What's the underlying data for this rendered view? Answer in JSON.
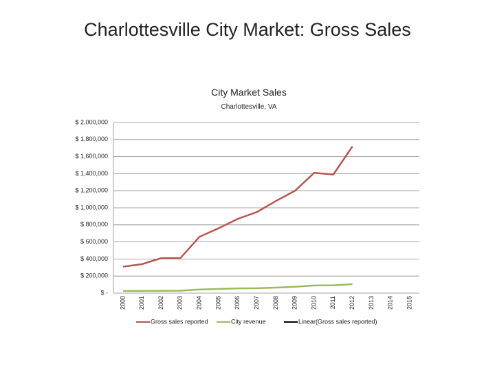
{
  "slide_title": "Charlottesville City Market:  Gross Sales",
  "chart_data": {
    "type": "line",
    "title": "City Market Sales",
    "subtitle": "Charlottesville, VA",
    "categories": [
      "2000",
      "2001",
      "2002",
      "2003",
      "2004",
      "2005",
      "2006",
      "2007",
      "2008",
      "2009",
      "2010",
      "2011",
      "2012",
      "2013",
      "2014",
      "2015"
    ],
    "series": [
      {
        "name": "Gross sales reported",
        "color": "#b85450",
        "values": [
          310000,
          340000,
          410000,
          410000,
          660000,
          760000,
          870000,
          950000,
          1080000,
          1200000,
          1410000,
          1390000,
          1720000,
          null,
          null,
          null
        ]
      },
      {
        "name": "City revenue",
        "color": "#9bbb59",
        "values": [
          25000,
          26000,
          27000,
          28000,
          42000,
          48000,
          55000,
          57000,
          65000,
          75000,
          90000,
          92000,
          105000,
          null,
          null,
          null
        ]
      },
      {
        "name": "Linear(Gross sales reported)",
        "color": "#000000",
        "values": [
          null,
          null,
          null,
          null,
          null,
          null,
          null,
          null,
          null,
          null,
          null,
          null,
          null,
          null,
          null,
          null
        ]
      }
    ],
    "ylim": [
      0,
      2000000
    ],
    "yticks": [
      {
        "value": 0,
        "label": "$ -"
      },
      {
        "value": 200000,
        "label": "$ 200,000"
      },
      {
        "value": 400000,
        "label": "$ 400,000"
      },
      {
        "value": 600000,
        "label": "$ 600,000"
      },
      {
        "value": 800000,
        "label": "$ 800,000"
      },
      {
        "value": 1000000,
        "label": "$ 1,000,000"
      },
      {
        "value": 1200000,
        "label": "$ 1,200,000"
      },
      {
        "value": 1400000,
        "label": "$ 1,400,000"
      },
      {
        "value": 1600000,
        "label": "$ 1,600,000"
      },
      {
        "value": 1800000,
        "label": "$ 1,800,000"
      },
      {
        "value": 2000000,
        "label": "$ 2,000,000"
      }
    ],
    "grid": true,
    "legend": "bottom"
  }
}
